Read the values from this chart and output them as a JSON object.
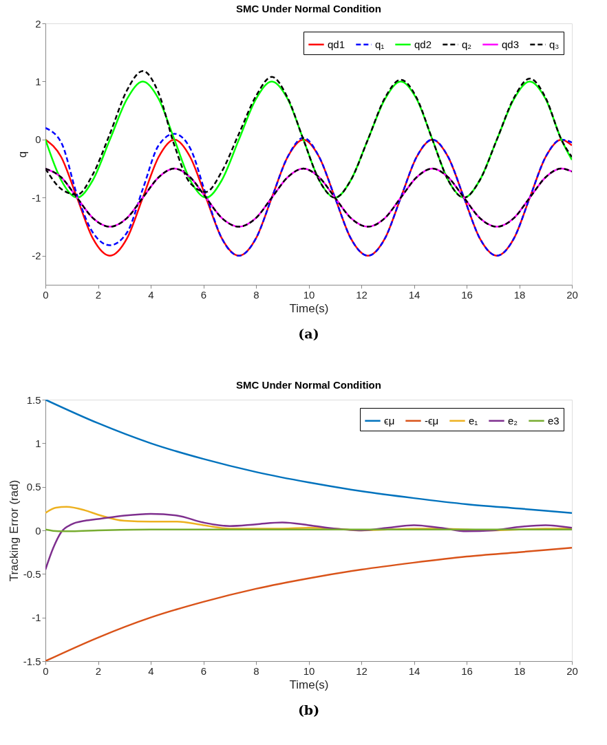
{
  "chart_data": [
    {
      "type": "line",
      "title": "SMC Under Normal Condition",
      "xlabel": "Time(s)",
      "ylabel": "q",
      "x": [
        0,
        0.6,
        1.2,
        1.8,
        2.45,
        3.1,
        3.7,
        4.3,
        4.9,
        5.5,
        6.1,
        6.7,
        7.35,
        8,
        8.6,
        9.2,
        9.8,
        10.4,
        11,
        11.6,
        12.25,
        12.9,
        13.5,
        14.1,
        14.7,
        15.3,
        15.9,
        16.5,
        17.15,
        17.8,
        18.4,
        19,
        19.6,
        20
      ],
      "series": [
        {
          "name": "qd1",
          "color": "#ff0000",
          "line_style": "solid",
          "values": [
            0,
            -0.3,
            -1,
            -1.7,
            -2,
            -1.7,
            -1,
            -0.3,
            0,
            -0.3,
            -1,
            -1.7,
            -2,
            -1.7,
            -1,
            -0.3,
            0,
            -0.3,
            -1,
            -1.7,
            -2,
            -1.7,
            -1,
            -0.3,
            0,
            -0.3,
            -1,
            -1.7,
            -2,
            -1.7,
            -1,
            -0.3,
            0,
            -0.1
          ]
        },
        {
          "name": "q₁",
          "color": "#0000ff",
          "line_style": "dashed",
          "values": [
            0.2,
            -0.05,
            -0.95,
            -1.6,
            -1.82,
            -1.6,
            -0.85,
            -0.1,
            0.1,
            -0.15,
            -0.95,
            -1.7,
            -2,
            -1.7,
            -1,
            -0.3,
            0.03,
            -0.3,
            -1,
            -1.7,
            -2,
            -1.7,
            -1,
            -0.3,
            0,
            -0.3,
            -1,
            -1.7,
            -2,
            -1.7,
            -1,
            -0.3,
            0,
            -0.05
          ]
        },
        {
          "name": "qd2",
          "color": "#00ff00",
          "line_style": "solid",
          "values": [
            0,
            -0.7,
            -1,
            -0.7,
            0,
            0.7,
            1,
            0.7,
            0,
            -0.7,
            -1,
            -0.7,
            0,
            0.7,
            1,
            0.7,
            0,
            -0.7,
            -1,
            -0.7,
            0,
            0.7,
            1,
            0.7,
            0,
            -0.7,
            -1,
            -0.7,
            0,
            0.7,
            1,
            0.7,
            0,
            -0.35
          ]
        },
        {
          "name": "q₂",
          "color": "#000000",
          "line_style": "dashed",
          "values": [
            -0.5,
            -0.85,
            -0.95,
            -0.6,
            0.1,
            0.85,
            1.18,
            0.8,
            -0.1,
            -0.75,
            -0.9,
            -0.55,
            0.1,
            0.75,
            1.08,
            0.72,
            0,
            -0.7,
            -1,
            -0.7,
            0,
            0.72,
            1.03,
            0.72,
            0,
            -0.7,
            -1,
            -0.7,
            0,
            0.72,
            1.05,
            0.72,
            0,
            -0.3
          ]
        },
        {
          "name": "qd3",
          "color": "#ff00ff",
          "line_style": "solid",
          "values": [
            -0.5,
            -0.65,
            -1,
            -1.35,
            -1.5,
            -1.35,
            -1,
            -0.65,
            -0.5,
            -0.65,
            -1,
            -1.35,
            -1.5,
            -1.35,
            -1,
            -0.65,
            -0.5,
            -0.65,
            -1,
            -1.35,
            -1.5,
            -1.35,
            -1,
            -0.65,
            -0.5,
            -0.65,
            -1,
            -1.35,
            -1.5,
            -1.35,
            -1,
            -0.65,
            -0.5,
            -0.55
          ]
        },
        {
          "name": "q₃",
          "color": "#000000",
          "line_style": "dashed",
          "values": [
            -0.5,
            -0.65,
            -1,
            -1.35,
            -1.5,
            -1.35,
            -1,
            -0.65,
            -0.5,
            -0.65,
            -1,
            -1.35,
            -1.5,
            -1.35,
            -1,
            -0.65,
            -0.5,
            -0.65,
            -1,
            -1.35,
            -1.5,
            -1.35,
            -1,
            -0.65,
            -0.5,
            -0.65,
            -1,
            -1.35,
            -1.5,
            -1.35,
            -1,
            -0.65,
            -0.5,
            -0.55
          ]
        }
      ],
      "xlim": [
        0,
        20
      ],
      "xticks": [
        0,
        2,
        4,
        6,
        8,
        10,
        12,
        14,
        16,
        18,
        20
      ],
      "ylim": [
        -2.5,
        2
      ],
      "yticks": [
        -2,
        -1,
        0,
        1,
        2
      ],
      "legend": "top right",
      "grid": false,
      "annotations": [
        "(a)"
      ]
    },
    {
      "type": "line",
      "title": "SMC Under Normal Condition",
      "xlabel": "Time(s)",
      "ylabel": "Tracking Error (rad)",
      "series": [
        {
          "name": "ϵμ",
          "color": "#0072bd",
          "x": [
            0,
            2,
            4,
            6,
            8,
            10,
            12,
            14,
            16,
            18,
            20
          ],
          "values": [
            1.5,
            1.23,
            1.0,
            0.82,
            0.67,
            0.55,
            0.45,
            0.37,
            0.3,
            0.25,
            0.2
          ]
        },
        {
          "name": "-ϵμ",
          "color": "#d95319",
          "x": [
            0,
            2,
            4,
            6,
            8,
            10,
            12,
            14,
            16,
            18,
            20
          ],
          "values": [
            -1.5,
            -1.23,
            -1.0,
            -0.82,
            -0.67,
            -0.55,
            -0.45,
            -0.37,
            -0.3,
            -0.25,
            -0.2
          ]
        },
        {
          "name": "e₁",
          "color": "#edb120",
          "x": [
            0,
            0.4,
            0.8,
            1.5,
            2,
            3,
            4,
            5,
            6,
            7,
            8,
            9,
            10,
            11,
            12,
            13,
            14,
            15,
            16,
            17,
            18,
            19,
            20
          ],
          "values": [
            0.2,
            0.26,
            0.27,
            0.23,
            0.18,
            0.11,
            0.1,
            0.1,
            0.06,
            0.02,
            0.02,
            0.02,
            0.03,
            0.02,
            0,
            0.01,
            0.02,
            0.02,
            0.01,
            0,
            0.01,
            0.02,
            0.02
          ]
        },
        {
          "name": "e₂",
          "color": "#7e2f8e",
          "x": [
            0,
            0.3,
            0.6,
            1,
            1.5,
            2,
            3,
            4,
            5,
            6,
            7,
            8,
            9,
            10,
            11,
            12,
            13,
            14,
            15,
            16,
            17,
            18,
            19,
            20
          ],
          "values": [
            -0.45,
            -0.2,
            -0.02,
            0.07,
            0.11,
            0.13,
            0.17,
            0.19,
            0.17,
            0.09,
            0.05,
            0.07,
            0.09,
            0.06,
            0.02,
            0,
            0.03,
            0.06,
            0.03,
            -0.01,
            0,
            0.04,
            0.06,
            0.03
          ]
        },
        {
          "name": "e3",
          "color": "#77ac30",
          "x": [
            0,
            0.5,
            1,
            2,
            4,
            8,
            12,
            16,
            20
          ],
          "values": [
            0.01,
            -0.01,
            -0.01,
            0,
            0.01,
            0.01,
            0.01,
            0.01,
            0.01
          ]
        }
      ],
      "xlim": [
        0,
        20
      ],
      "xticks": [
        0,
        2,
        4,
        6,
        8,
        10,
        12,
        14,
        16,
        18,
        20
      ],
      "ylim": [
        -1.5,
        1.5
      ],
      "yticks": [
        -1.5,
        -1,
        -0.5,
        0,
        0.5,
        1,
        1.5
      ],
      "legend": "top right",
      "grid": false,
      "annotations": [
        "(b)"
      ]
    }
  ]
}
